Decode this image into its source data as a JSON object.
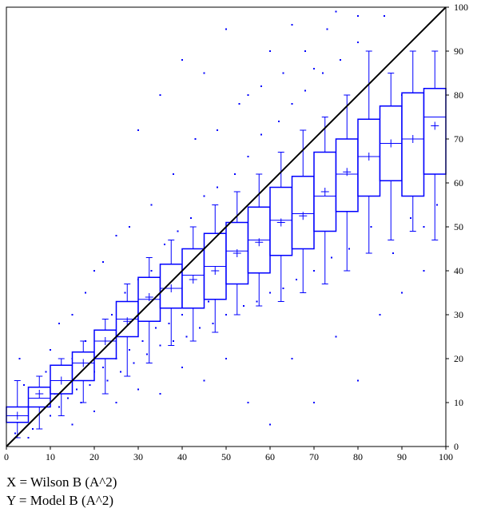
{
  "chart_data": {
    "type": "scatter",
    "title": "",
    "xlabel": "X = Wilson B (A^2)",
    "ylabel": "Y = Model B (A^2)",
    "xlim": [
      0,
      100
    ],
    "ylim": [
      0,
      100
    ],
    "x_ticks": [
      "0",
      "10",
      "20",
      "30",
      "40",
      "50",
      "60",
      "70",
      "80",
      "90",
      "100"
    ],
    "y_ticks": [
      "0",
      "10",
      "20",
      "30",
      "40",
      "50",
      "60",
      "70",
      "80",
      "90",
      "100"
    ],
    "grid": false,
    "legend": "none",
    "reference_line": {
      "from": [
        0,
        0
      ],
      "to": [
        100,
        100
      ]
    },
    "colors": {
      "points": "#0000ff",
      "boxes": "#0000ff",
      "diagonal": "#000000",
      "axes": "#000000"
    },
    "boxplots": [
      {
        "x": 2.5,
        "min": 2,
        "q1": 5.5,
        "median": 7,
        "q3": 9,
        "max": 15,
        "mean": 7
      },
      {
        "x": 7.5,
        "min": 4,
        "q1": 9,
        "median": 11,
        "q3": 13.5,
        "max": 16,
        "mean": 12
      },
      {
        "x": 12.5,
        "min": 7,
        "q1": 12,
        "median": 15,
        "q3": 18.5,
        "max": 20,
        "mean": 15
      },
      {
        "x": 17.5,
        "min": 10,
        "q1": 15,
        "median": 19,
        "q3": 21.5,
        "max": 24,
        "mean": 19
      },
      {
        "x": 22.5,
        "min": 12,
        "q1": 20,
        "median": 24,
        "q3": 26.5,
        "max": 29,
        "mean": 24
      },
      {
        "x": 27.5,
        "min": 16,
        "q1": 25,
        "median": 29,
        "q3": 33,
        "max": 37,
        "mean": 28.5
      },
      {
        "x": 32.5,
        "min": 19,
        "q1": 28.5,
        "median": 33.5,
        "q3": 38.5,
        "max": 43,
        "mean": 34
      },
      {
        "x": 37.5,
        "min": 23,
        "q1": 31.5,
        "median": 36,
        "q3": 41.5,
        "max": 47,
        "mean": 36
      },
      {
        "x": 42.5,
        "min": 24,
        "q1": 31.5,
        "median": 39,
        "q3": 45,
        "max": 50,
        "mean": 38
      },
      {
        "x": 47.5,
        "min": 26,
        "q1": 33.5,
        "median": 41,
        "q3": 48.5,
        "max": 55,
        "mean": 40
      },
      {
        "x": 52.5,
        "min": 30,
        "q1": 37,
        "median": 44.5,
        "q3": 51,
        "max": 58,
        "mean": 44
      },
      {
        "x": 57.5,
        "min": 32,
        "q1": 39.5,
        "median": 47,
        "q3": 54.5,
        "max": 62,
        "mean": 46.5
      },
      {
        "x": 62.5,
        "min": 33,
        "q1": 43.5,
        "median": 51.5,
        "q3": 59,
        "max": 67,
        "mean": 51
      },
      {
        "x": 67.5,
        "min": 35,
        "q1": 45,
        "median": 53,
        "q3": 61.5,
        "max": 72,
        "mean": 52.5
      },
      {
        "x": 72.5,
        "min": 37,
        "q1": 49,
        "median": 57,
        "q3": 67,
        "max": 75,
        "mean": 58
      },
      {
        "x": 77.5,
        "min": 40,
        "q1": 53.5,
        "median": 62,
        "q3": 70,
        "max": 80,
        "mean": 62.5
      },
      {
        "x": 82.5,
        "min": 44,
        "q1": 57,
        "median": 66,
        "q3": 74.5,
        "max": 90,
        "mean": 66
      },
      {
        "x": 87.5,
        "min": 47,
        "q1": 60.5,
        "median": 69,
        "q3": 77.5,
        "max": 85,
        "mean": 69
      },
      {
        "x": 92.5,
        "min": 49,
        "q1": 57,
        "median": 70,
        "q3": 80.5,
        "max": 90,
        "mean": 70
      },
      {
        "x": 97.5,
        "min": 47,
        "q1": 62,
        "median": 75,
        "q3": 81.5,
        "max": 90,
        "mean": 73
      }
    ],
    "scatter_points": [
      [
        2,
        3
      ],
      [
        3,
        20
      ],
      [
        4,
        14
      ],
      [
        5,
        9
      ],
      [
        6,
        4
      ],
      [
        7,
        12
      ],
      [
        8,
        10
      ],
      [
        9,
        17
      ],
      [
        10,
        7
      ],
      [
        11,
        12
      ],
      [
        12,
        9
      ],
      [
        13,
        16
      ],
      [
        14,
        11
      ],
      [
        15,
        20
      ],
      [
        16,
        13
      ],
      [
        17,
        10
      ],
      [
        18,
        24
      ],
      [
        19,
        14
      ],
      [
        20,
        17
      ],
      [
        21,
        26
      ],
      [
        22,
        18
      ],
      [
        23,
        15
      ],
      [
        24,
        30
      ],
      [
        25,
        20
      ],
      [
        26,
        17
      ],
      [
        27,
        35
      ],
      [
        28,
        22
      ],
      [
        29,
        19
      ],
      [
        30,
        38
      ],
      [
        31,
        24
      ],
      [
        32,
        21
      ],
      [
        33,
        40
      ],
      [
        34,
        27
      ],
      [
        35,
        23
      ],
      [
        36,
        46
      ],
      [
        37,
        28
      ],
      [
        38,
        24
      ],
      [
        39,
        49
      ],
      [
        40,
        30
      ],
      [
        41,
        25
      ],
      [
        42,
        52
      ],
      [
        43,
        32
      ],
      [
        44,
        27
      ],
      [
        45,
        57
      ],
      [
        46,
        33
      ],
      [
        47,
        28
      ],
      [
        48,
        59
      ],
      [
        49,
        35
      ],
      [
        50,
        30
      ],
      [
        52,
        62
      ],
      [
        54,
        32
      ],
      [
        55,
        66
      ],
      [
        57,
        33
      ],
      [
        58,
        71
      ],
      [
        60,
        35
      ],
      [
        62,
        74
      ],
      [
        63,
        36
      ],
      [
        65,
        78
      ],
      [
        66,
        38
      ],
      [
        68,
        81
      ],
      [
        70,
        40
      ],
      [
        72,
        85
      ],
      [
        74,
        43
      ],
      [
        76,
        88
      ],
      [
        78,
        45
      ],
      [
        80,
        92
      ],
      [
        83,
        50
      ],
      [
        86,
        98
      ],
      [
        88,
        44
      ],
      [
        92,
        52
      ],
      [
        95,
        50
      ],
      [
        98,
        55
      ],
      [
        30,
        72
      ],
      [
        35,
        80
      ],
      [
        40,
        88
      ],
      [
        45,
        85
      ],
      [
        50,
        95
      ],
      [
        55,
        80
      ],
      [
        60,
        90
      ],
      [
        65,
        96
      ],
      [
        70,
        86
      ],
      [
        75,
        99
      ],
      [
        25,
        48
      ],
      [
        20,
        40
      ],
      [
        15,
        30
      ],
      [
        10,
        22
      ],
      [
        12,
        28
      ],
      [
        18,
        35
      ],
      [
        22,
        42
      ],
      [
        28,
        50
      ],
      [
        33,
        55
      ],
      [
        38,
        62
      ],
      [
        43,
        70
      ],
      [
        48,
        72
      ],
      [
        53,
        78
      ],
      [
        58,
        82
      ],
      [
        63,
        85
      ],
      [
        68,
        90
      ],
      [
        73,
        95
      ],
      [
        80,
        98
      ],
      [
        5,
        2
      ],
      [
        15,
        5
      ],
      [
        25,
        10
      ],
      [
        35,
        12
      ],
      [
        45,
        15
      ],
      [
        55,
        10
      ],
      [
        65,
        20
      ],
      [
        75,
        25
      ],
      [
        85,
        30
      ],
      [
        90,
        35
      ],
      [
        95,
        40
      ],
      [
        60,
        5
      ],
      [
        70,
        10
      ],
      [
        80,
        15
      ],
      [
        50,
        20
      ],
      [
        40,
        18
      ],
      [
        30,
        13
      ],
      [
        20,
        8
      ],
      [
        85,
        70
      ],
      [
        90,
        80
      ]
    ]
  }
}
